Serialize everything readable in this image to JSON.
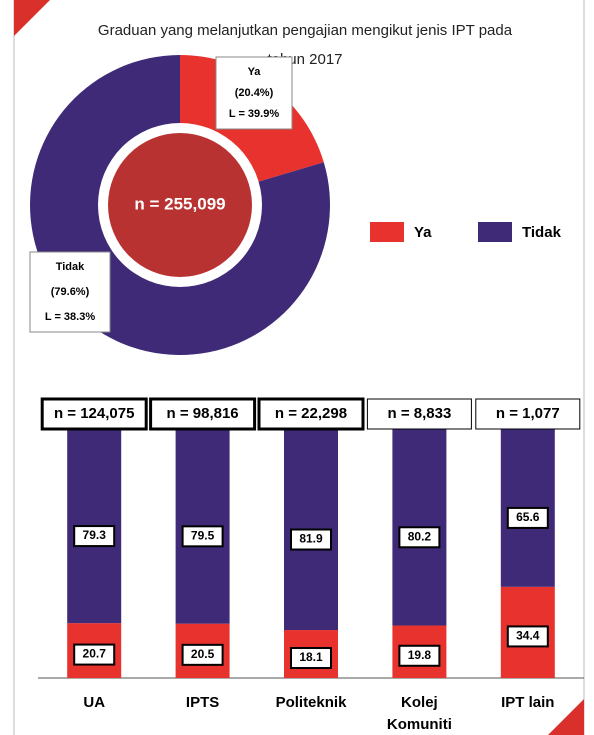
{
  "chart_data": [
    {
      "type": "pie",
      "title": "Graduan yang melanjutkan pengajian mengikut jenis IPT pada tahun 2017",
      "categories": [
        "Ya",
        "Tidak"
      ],
      "values": [
        20.4,
        79.6
      ],
      "value_labels": [
        "(20.4%)",
        "(79.6%)"
      ],
      "annotations": [
        "L = 39.9%",
        "L = 38.3%"
      ],
      "center_label": "n = 255,099",
      "colors": [
        "#e8322e",
        "#3f2a78"
      ],
      "center_color": "#b93232",
      "legend": "right"
    },
    {
      "type": "bar",
      "stacked": true,
      "categories": [
        "UA",
        "IPTS",
        "Politeknik",
        "Kolej Komuniti",
        "IPT lain"
      ],
      "annotations": [
        "n = 124,075",
        "n = 98,816",
        "n = 22,298",
        "n = 8,833",
        "n = 1,077"
      ],
      "series": [
        {
          "name": "Ya",
          "color": "#e8322e",
          "values": [
            20.7,
            20.5,
            18.1,
            19.8,
            34.4
          ]
        },
        {
          "name": "Tidak",
          "color": "#3f2a78",
          "values": [
            79.3,
            79.5,
            81.9,
            80.2,
            65.6
          ]
        }
      ],
      "ylim": [
        0,
        100
      ]
    }
  ]
}
